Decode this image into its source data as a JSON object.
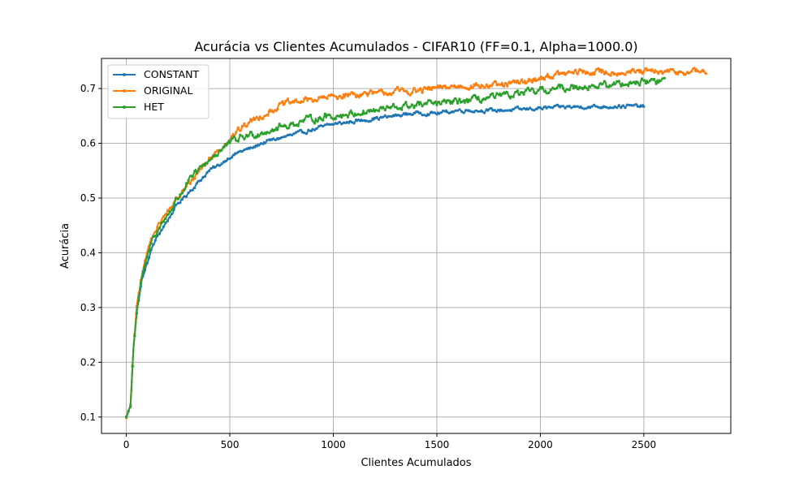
{
  "chart_data": {
    "type": "line",
    "title": "Acurácia vs Clientes Acumulados - CIFAR10 (FF=0.1, Alpha=1000.0)",
    "xlabel": "Clientes Acumulados",
    "ylabel": "Acurácia",
    "xlim": [
      -120,
      2920
    ],
    "ylim": [
      0.07,
      0.755
    ],
    "xticks": [
      0,
      500,
      1000,
      1500,
      2000,
      2500
    ],
    "yticks": [
      0.1,
      0.2,
      0.3,
      0.4,
      0.5,
      0.6,
      0.7
    ],
    "grid": true,
    "legend_position": "upper left",
    "series": [
      {
        "name": "CONSTANT",
        "color": "#1f77b4",
        "x_end": 2500,
        "points": [
          [
            0,
            0.1
          ],
          [
            20,
            0.12
          ],
          [
            35,
            0.23
          ],
          [
            50,
            0.29
          ],
          [
            75,
            0.35
          ],
          [
            100,
            0.38
          ],
          [
            125,
            0.41
          ],
          [
            150,
            0.43
          ],
          [
            200,
            0.46
          ],
          [
            250,
            0.49
          ],
          [
            300,
            0.51
          ],
          [
            350,
            0.53
          ],
          [
            400,
            0.55
          ],
          [
            450,
            0.56
          ],
          [
            500,
            0.575
          ],
          [
            550,
            0.585
          ],
          [
            600,
            0.59
          ],
          [
            650,
            0.6
          ],
          [
            700,
            0.605
          ],
          [
            750,
            0.61
          ],
          [
            800,
            0.615
          ],
          [
            850,
            0.62
          ],
          [
            900,
            0.625
          ],
          [
            1000,
            0.635
          ],
          [
            1100,
            0.64
          ],
          [
            1200,
            0.645
          ],
          [
            1300,
            0.65
          ],
          [
            1400,
            0.655
          ],
          [
            1500,
            0.655
          ],
          [
            1600,
            0.66
          ],
          [
            1700,
            0.66
          ],
          [
            1800,
            0.66
          ],
          [
            1900,
            0.662
          ],
          [
            2000,
            0.664
          ],
          [
            2100,
            0.666
          ],
          [
            2200,
            0.667
          ],
          [
            2300,
            0.667
          ],
          [
            2400,
            0.668
          ],
          [
            2500,
            0.668
          ]
        ]
      },
      {
        "name": "ORIGINAL",
        "color": "#ff7f0e",
        "x_end": 2800,
        "points": [
          [
            0,
            0.1
          ],
          [
            20,
            0.12
          ],
          [
            35,
            0.23
          ],
          [
            50,
            0.3
          ],
          [
            75,
            0.36
          ],
          [
            100,
            0.4
          ],
          [
            125,
            0.43
          ],
          [
            150,
            0.45
          ],
          [
            200,
            0.475
          ],
          [
            250,
            0.5
          ],
          [
            300,
            0.525
          ],
          [
            350,
            0.55
          ],
          [
            400,
            0.57
          ],
          [
            450,
            0.59
          ],
          [
            500,
            0.61
          ],
          [
            550,
            0.625
          ],
          [
            600,
            0.64
          ],
          [
            650,
            0.65
          ],
          [
            700,
            0.66
          ],
          [
            750,
            0.67
          ],
          [
            800,
            0.675
          ],
          [
            900,
            0.68
          ],
          [
            1000,
            0.685
          ],
          [
            1100,
            0.69
          ],
          [
            1200,
            0.69
          ],
          [
            1300,
            0.695
          ],
          [
            1400,
            0.695
          ],
          [
            1500,
            0.7
          ],
          [
            1600,
            0.705
          ],
          [
            1700,
            0.705
          ],
          [
            1800,
            0.705
          ],
          [
            1900,
            0.71
          ],
          [
            2000,
            0.72
          ],
          [
            2100,
            0.727
          ],
          [
            2200,
            0.73
          ],
          [
            2300,
            0.73
          ],
          [
            2400,
            0.73
          ],
          [
            2500,
            0.73
          ],
          [
            2600,
            0.73
          ],
          [
            2700,
            0.73
          ],
          [
            2800,
            0.732
          ]
        ]
      },
      {
        "name": "HET",
        "color": "#2ca02c",
        "x_end": 2600,
        "points": [
          [
            0,
            0.1
          ],
          [
            20,
            0.12
          ],
          [
            35,
            0.23
          ],
          [
            50,
            0.29
          ],
          [
            75,
            0.355
          ],
          [
            100,
            0.39
          ],
          [
            125,
            0.425
          ],
          [
            150,
            0.44
          ],
          [
            200,
            0.47
          ],
          [
            250,
            0.5
          ],
          [
            300,
            0.53
          ],
          [
            350,
            0.55
          ],
          [
            400,
            0.57
          ],
          [
            450,
            0.585
          ],
          [
            500,
            0.6
          ],
          [
            550,
            0.61
          ],
          [
            600,
            0.615
          ],
          [
            650,
            0.62
          ],
          [
            700,
            0.625
          ],
          [
            750,
            0.63
          ],
          [
            800,
            0.635
          ],
          [
            900,
            0.645
          ],
          [
            1000,
            0.65
          ],
          [
            1100,
            0.655
          ],
          [
            1200,
            0.66
          ],
          [
            1300,
            0.665
          ],
          [
            1400,
            0.67
          ],
          [
            1500,
            0.672
          ],
          [
            1600,
            0.676
          ],
          [
            1700,
            0.68
          ],
          [
            1800,
            0.685
          ],
          [
            1900,
            0.69
          ],
          [
            2000,
            0.695
          ],
          [
            2100,
            0.7
          ],
          [
            2200,
            0.705
          ],
          [
            2300,
            0.705
          ],
          [
            2400,
            0.71
          ],
          [
            2500,
            0.713
          ],
          [
            2600,
            0.715
          ]
        ]
      }
    ]
  }
}
